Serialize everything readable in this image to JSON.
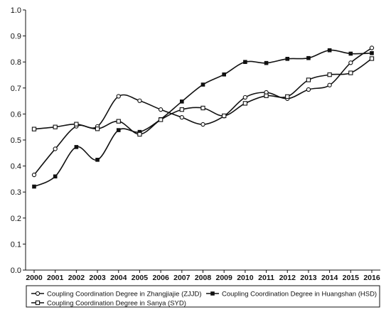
{
  "chart_data": {
    "type": "line",
    "title": "",
    "xlabel": "",
    "ylabel": "",
    "x": [
      "2000",
      "2001",
      "2002",
      "2003",
      "2004",
      "2005",
      "2006",
      "2007",
      "2008",
      "2009",
      "2010",
      "2011",
      "2012",
      "2013",
      "2014",
      "2015",
      "2016"
    ],
    "ylim": [
      0.0,
      1.0
    ],
    "yticks": [
      "0.0",
      "0.1",
      "0.2",
      "0.3",
      "0.4",
      "0.5",
      "0.6",
      "0.7",
      "0.8",
      "0.9",
      "1.0"
    ],
    "grid": false,
    "legend_position": "bottom",
    "series": [
      {
        "name": "Coupling Coordination Degree in Zhangjiajie (ZJJD)",
        "marker": "open-circle",
        "color": "#111111",
        "values": [
          0.366,
          0.466,
          0.553,
          0.552,
          0.668,
          0.651,
          0.617,
          0.587,
          0.56,
          0.592,
          0.664,
          0.683,
          0.659,
          0.694,
          0.711,
          0.797,
          0.854
        ]
      },
      {
        "name": "Coupling Coordination Degree in Huangshan (HSD)",
        "marker": "filled-square",
        "color": "#111111",
        "values": [
          0.321,
          0.36,
          0.473,
          0.424,
          0.538,
          0.531,
          0.58,
          0.648,
          0.713,
          0.752,
          0.8,
          0.796,
          0.812,
          0.815,
          0.845,
          0.832,
          0.834
        ]
      },
      {
        "name": "Coupling Coordination Degree in Sanya (SYD)",
        "marker": "open-square",
        "color": "#111111",
        "values": [
          0.542,
          0.55,
          0.561,
          0.543,
          0.572,
          0.522,
          0.578,
          0.617,
          0.623,
          0.593,
          0.641,
          0.67,
          0.667,
          0.731,
          0.751,
          0.758,
          0.813
        ]
      }
    ]
  }
}
